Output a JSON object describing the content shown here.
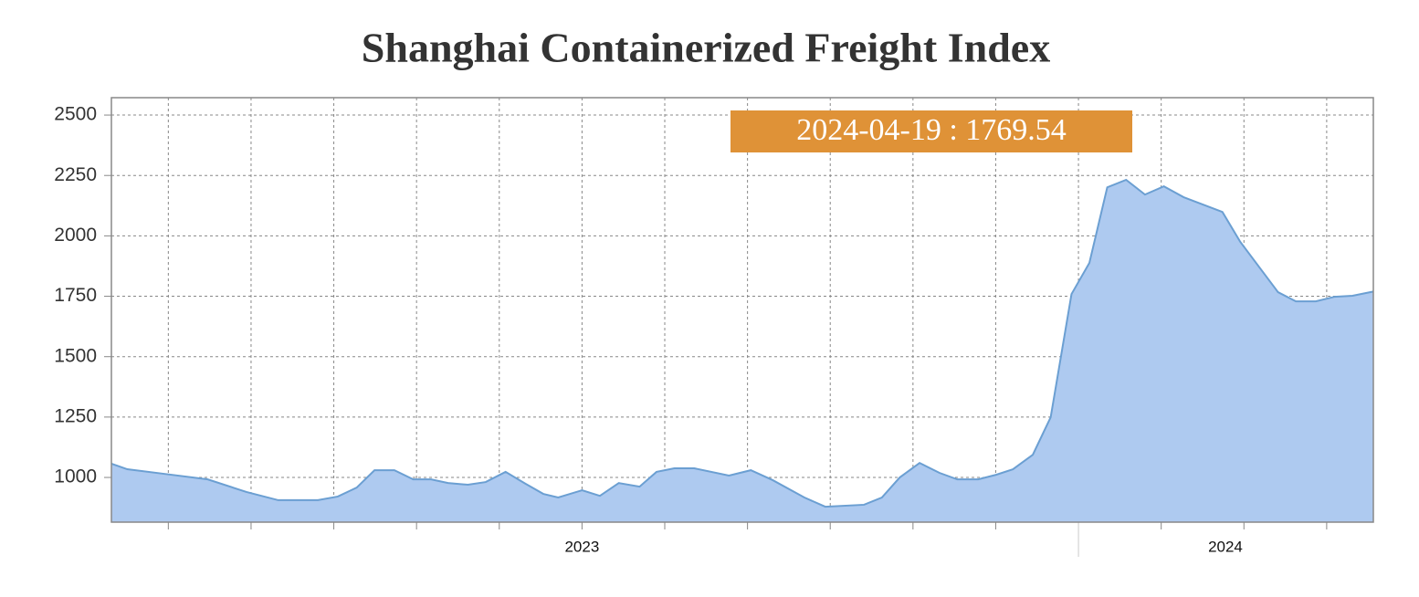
{
  "chart_data": {
    "type": "area",
    "title": "Shanghai Containerized Freight Index",
    "annotation": "2024-04-19 : 1769.54",
    "x": [
      2023.026,
      2023.042,
      2023.079,
      2023.123,
      2023.162,
      2023.194,
      2023.234,
      2023.254,
      2023.273,
      2023.291,
      2023.311,
      2023.33,
      2023.348,
      2023.365,
      2023.385,
      2023.403,
      2023.423,
      2023.443,
      2023.461,
      2023.476,
      2023.5,
      2023.518,
      2023.537,
      2023.558,
      2023.575,
      2023.593,
      2023.613,
      2023.648,
      2023.67,
      2023.692,
      2023.724,
      2023.745,
      2023.784,
      2023.802,
      2023.82,
      2023.84,
      2023.86,
      2023.878,
      2023.899,
      2023.917,
      2023.934,
      2023.954,
      2023.972,
      2023.993,
      2024.011,
      2024.029,
      2024.048,
      2024.067,
      2024.086,
      2024.106,
      2024.145,
      2024.163,
      2024.201,
      2024.219,
      2024.239,
      2024.258,
      2024.276,
      2024.297
    ],
    "values": [
      1057,
      1034,
      1015,
      992,
      940,
      906,
      906,
      921,
      958,
      1030,
      1030,
      992,
      992,
      977,
      970,
      981,
      1023,
      974,
      932,
      917,
      947,
      924,
      977,
      962,
      1023,
      1038,
      1038,
      1008,
      1030,
      989,
      917,
      879,
      887,
      917,
      1000,
      1060,
      1019,
      992,
      992,
      1011,
      1034,
      1094,
      1249,
      1759,
      1888,
      2201,
      2232,
      2171,
      2205,
      2160,
      2099,
      1975,
      1767,
      1729,
      1729,
      1748,
      1752,
      1769.54
    ],
    "color": "#aecaf0",
    "line_color": "#6b9fd2",
    "xlim": [
      2023.026,
      2024.297
    ],
    "xticks": [
      {
        "value": 2023.5,
        "label": "2023"
      },
      {
        "value": 2024.148,
        "label": "2024"
      }
    ],
    "ylim": [
      815,
      2572
    ],
    "yticks": [
      1000,
      1250,
      1500,
      1750,
      2000,
      2250,
      2500
    ],
    "grid": true
  }
}
